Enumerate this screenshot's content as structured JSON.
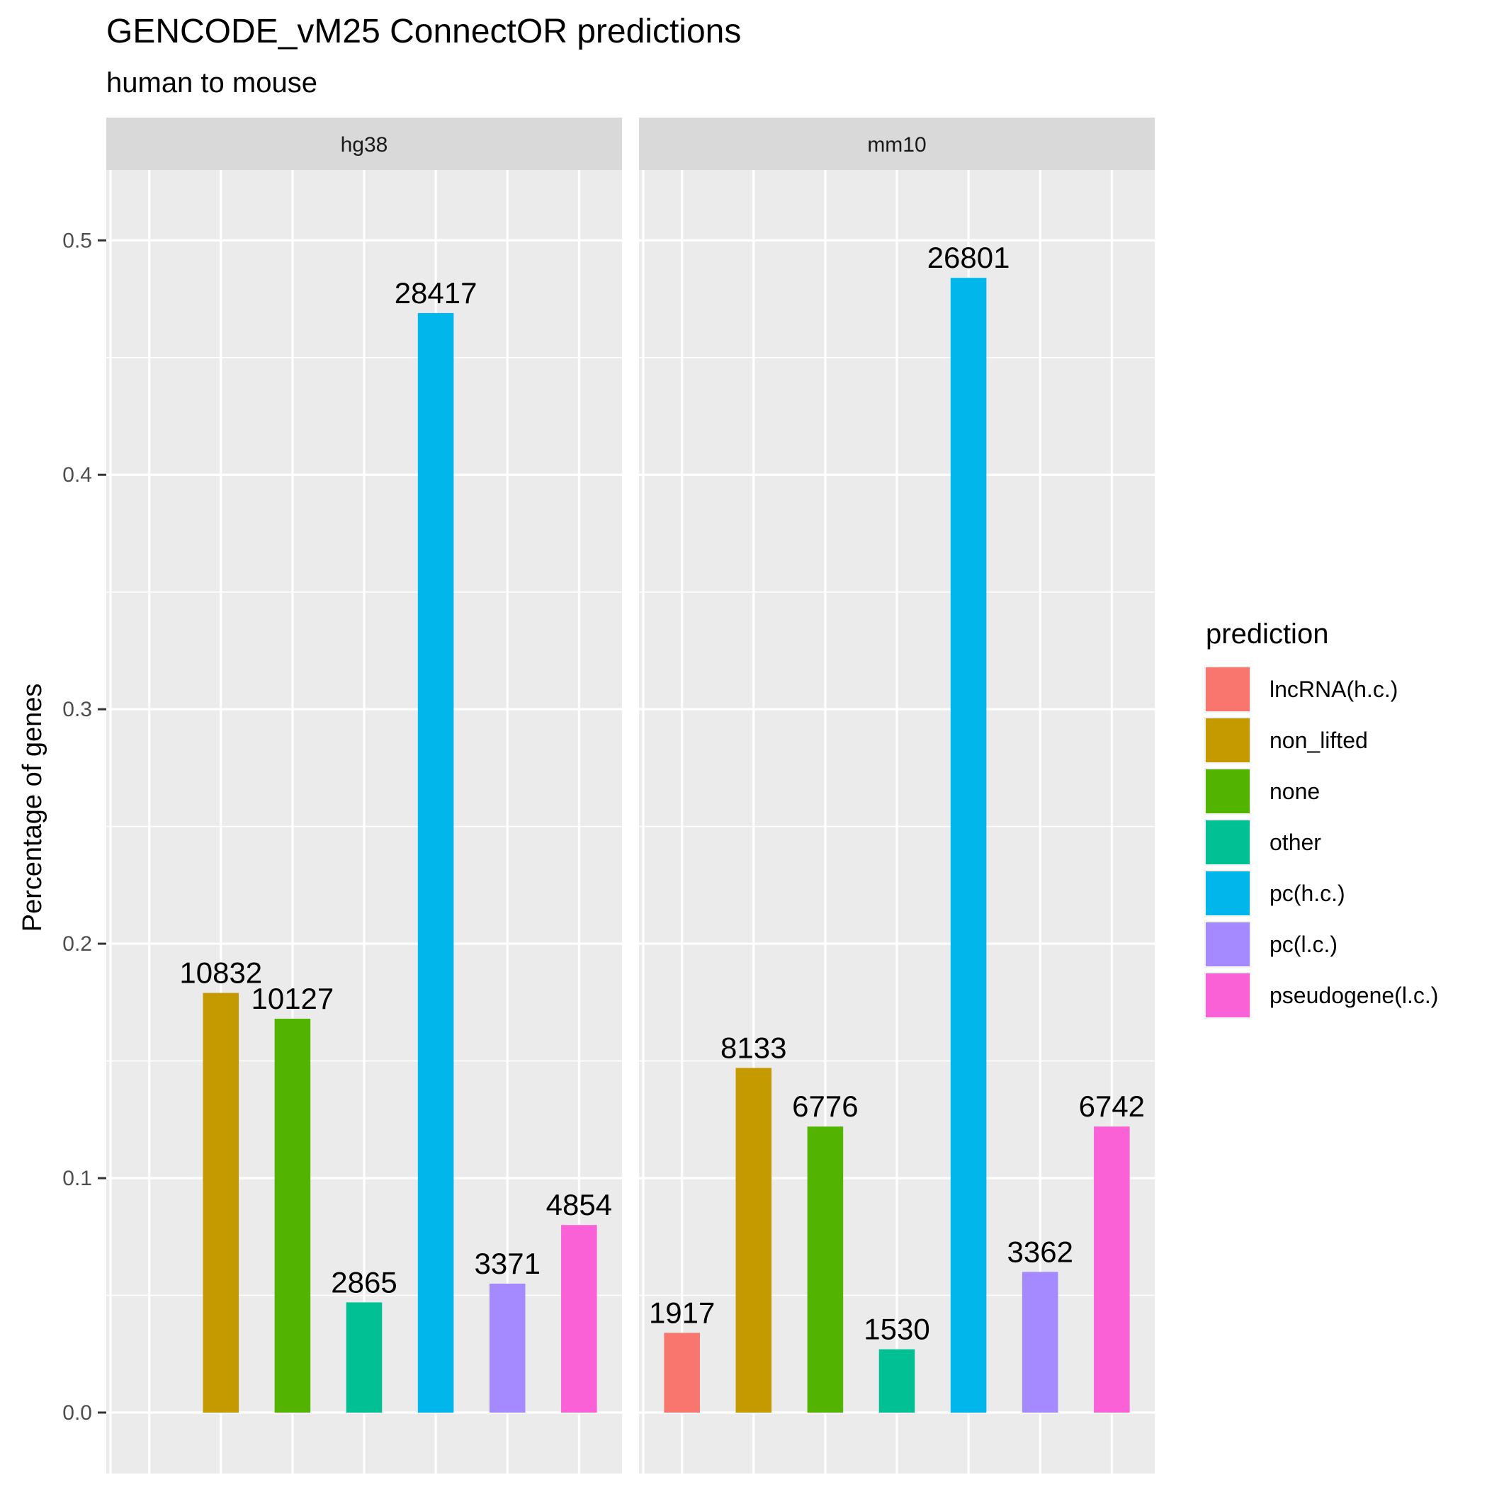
{
  "chart_data": {
    "type": "bar",
    "title": "GENCODE_vM25 ConnectOR predictions",
    "subtitle": "human to mouse",
    "ylabel": "Percentage of genes",
    "xlabel": "",
    "ylim": [
      -0.026,
      0.53
    ],
    "yticks": [
      0.0,
      0.1,
      0.2,
      0.3,
      0.4,
      0.5
    ],
    "ytick_labels": [
      "0.0",
      "0.1",
      "0.2",
      "0.3",
      "0.4",
      "0.5"
    ],
    "grid": true,
    "legend": {
      "title": "prediction",
      "position": "right",
      "entries": [
        "lncRNA(h.c.)",
        "non_lifted",
        "none",
        "other",
        "pc(h.c.)",
        "pc(l.c.)",
        "pseudogene(l.c.)"
      ]
    },
    "colors": {
      "lncRNA(h.c.)": "#F8766D",
      "non_lifted": "#C49A00",
      "none": "#53B400",
      "other": "#00C094",
      "pc(h.c.)": "#00B6EB",
      "pc(l.c.)": "#A58AFF",
      "pseudogene(l.c.)": "#FB61D7"
    },
    "categories": [
      "lncRNA(h.c.)",
      "non_lifted",
      "none",
      "other",
      "pc(h.c.)",
      "pc(l.c.)",
      "pseudogene(l.c.)"
    ],
    "facets": [
      {
        "name": "hg38",
        "values": [
          null,
          0.179,
          0.168,
          0.047,
          0.469,
          0.055,
          0.08
        ],
        "labels": [
          null,
          "10832",
          "10127",
          "2865",
          "28417",
          "3371",
          "4854"
        ]
      },
      {
        "name": "mm10",
        "values": [
          0.034,
          0.147,
          0.122,
          0.027,
          0.484,
          0.06,
          0.122
        ],
        "labels": [
          "1917",
          "8133",
          "6776",
          "1530",
          "26801",
          "3362",
          "6742"
        ]
      }
    ]
  }
}
